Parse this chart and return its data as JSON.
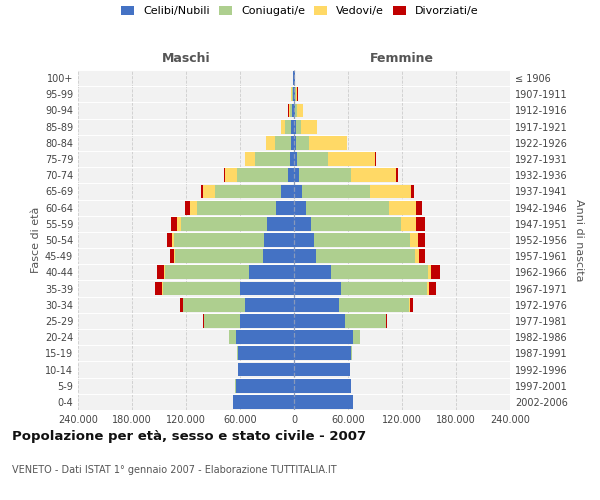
{
  "title": "Popolazione per età, sesso e stato civile - 2007",
  "subtitle": "VENETO - Dati ISTAT 1° gennaio 2007 - Elaborazione TUTTITALIA.IT",
  "xlabel_left": "Maschi",
  "xlabel_right": "Femmine",
  "ylabel_left": "Fasce di età",
  "ylabel_right": "Anni di nascita",
  "age_groups": [
    "0-4",
    "5-9",
    "10-14",
    "15-19",
    "20-24",
    "25-29",
    "30-34",
    "35-39",
    "40-44",
    "45-49",
    "50-54",
    "55-59",
    "60-64",
    "65-69",
    "70-74",
    "75-79",
    "80-84",
    "85-89",
    "90-94",
    "95-99",
    "100+"
  ],
  "birth_years": [
    "2002-2006",
    "1997-2001",
    "1992-1996",
    "1987-1991",
    "1982-1986",
    "1977-1981",
    "1972-1976",
    "1967-1971",
    "1962-1966",
    "1957-1961",
    "1952-1956",
    "1947-1951",
    "1942-1946",
    "1937-1941",
    "1932-1936",
    "1927-1931",
    "1922-1926",
    "1917-1921",
    "1912-1916",
    "1907-1911",
    "≤ 1906"
  ],
  "colors": {
    "celibi": "#4472C4",
    "coniugati": "#AECF8F",
    "vedovi": "#FFD966",
    "divorziati": "#C00000"
  },
  "legend_labels": [
    "Celibi/Nubili",
    "Coniugati/e",
    "Vedovi/e",
    "Divorziati/e"
  ],
  "maschi": {
    "celibi": [
      68000,
      65000,
      62000,
      62000,
      65000,
      60000,
      55000,
      60000,
      50000,
      35000,
      33000,
      30000,
      20000,
      14000,
      7000,
      5000,
      3500,
      3000,
      2000,
      1500,
      800
    ],
    "coniugati": [
      50,
      100,
      300,
      1000,
      7000,
      40000,
      68000,
      86000,
      93000,
      97000,
      100000,
      96000,
      88000,
      74000,
      56000,
      38000,
      18000,
      7000,
      2500,
      1000,
      500
    ],
    "vedovi": [
      2,
      5,
      8,
      15,
      40,
      80,
      250,
      700,
      1200,
      1800,
      2800,
      4500,
      8000,
      13000,
      13500,
      11000,
      9500,
      4000,
      1500,
      500,
      200
    ],
    "divorziati": [
      5,
      8,
      15,
      80,
      350,
      1200,
      3500,
      7500,
      7500,
      3800,
      5200,
      6200,
      4800,
      2800,
      1800,
      900,
      400,
      250,
      150,
      80,
      40
    ]
  },
  "femmine": {
    "nubili": [
      65000,
      63000,
      62000,
      63000,
      65000,
      57000,
      50000,
      52000,
      41000,
      24000,
      22000,
      19000,
      13000,
      8500,
      5000,
      3500,
      2500,
      2000,
      1500,
      1000,
      600
    ],
    "coniugate": [
      60,
      120,
      400,
      1200,
      8000,
      45000,
      78000,
      96000,
      108000,
      110000,
      107000,
      100000,
      92000,
      76000,
      58000,
      34000,
      14000,
      5500,
      2000,
      800,
      300
    ],
    "vedove": [
      2,
      5,
      8,
      15,
      50,
      150,
      500,
      1500,
      3000,
      5000,
      8500,
      17000,
      30000,
      45000,
      50000,
      52000,
      42000,
      18000,
      6000,
      2000,
      500
    ],
    "divorziate": [
      5,
      8,
      20,
      80,
      350,
      1300,
      4000,
      8500,
      10000,
      6000,
      8000,
      9000,
      7000,
      4000,
      2500,
      1200,
      600,
      350,
      180,
      90,
      40
    ]
  },
  "xlim": 240000,
  "background_color": "#FFFFFF",
  "grid_color": "#CCCCCC",
  "plot_bg_color": "#F2F2F2"
}
